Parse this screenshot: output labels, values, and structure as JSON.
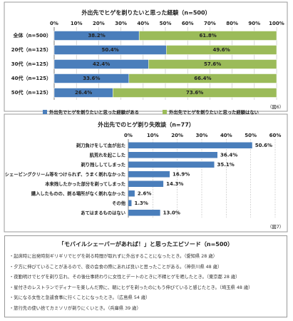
{
  "chart_data": [
    {
      "type": "bar",
      "orientation": "horizontal",
      "stacked": true,
      "grid": true,
      "title": "外出先でヒゲを剃りたいと思った経験（n=500）",
      "categories": [
        "全体（n=500）",
        "20代（n=125）",
        "30代（n=125）",
        "40代（n=125）",
        "50代（n=125）"
      ],
      "series": [
        {
          "name": "外出先でヒゲを剃りたいと思った経験がある",
          "color": "#4a7ebb",
          "values": [
            38.2,
            50.4,
            42.4,
            33.6,
            26.4
          ],
          "value_labels": [
            "38.2%",
            "50.4%",
            "42.4%",
            "33.6%",
            "26.4%"
          ]
        },
        {
          "name": "外出先でヒゲを剃りたいと思った経験はない",
          "color": "#9bbb59",
          "values": [
            61.8,
            49.6,
            57.6,
            66.4,
            73.6
          ],
          "value_labels": [
            "61.8%",
            "49.6%",
            "57.6%",
            "66.4%",
            "73.6%"
          ]
        }
      ],
      "xlim": [
        0,
        100
      ],
      "xticks": [
        {
          "value": 0,
          "label": "0%"
        },
        {
          "value": 10,
          "label": "10%"
        },
        {
          "value": 20,
          "label": "20%"
        },
        {
          "value": 30,
          "label": "30%"
        },
        {
          "value": 40,
          "label": "40%"
        },
        {
          "value": 50,
          "label": "50%"
        },
        {
          "value": 60,
          "label": "60%"
        },
        {
          "value": 70,
          "label": "70%"
        },
        {
          "value": 80,
          "label": "80%"
        },
        {
          "value": 90,
          "label": "90%"
        },
        {
          "value": 100,
          "label": "100%"
        }
      ],
      "note": "（図6）"
    },
    {
      "type": "bar",
      "orientation": "horizontal",
      "stacked": false,
      "grid": true,
      "title": "外出先でのヒゲ剃り失敗談（n=77）",
      "categories": [
        "剃刀負けをして血が出た",
        "肌荒れを起こした",
        "剃り残ししてしまった",
        "シェービングクリーム等をつけられず、うまく剃れなかった",
        "本来残したかった部分を剃ってしまった",
        "購入したものの、剃る場所がなく剃れなかった",
        "その他",
        "あてはまるものはない"
      ],
      "values": [
        50.6,
        36.4,
        35.1,
        16.9,
        14.3,
        2.6,
        1.3,
        13.0
      ],
      "value_labels": [
        "50.6%",
        "36.4%",
        "35.1%",
        "16.9%",
        "14.3%",
        "2.6%",
        "1.3%",
        "13.0%"
      ],
      "color": "#4a7ebb",
      "xlim": [
        0,
        60
      ],
      "xticks": [
        {
          "value": 0,
          "label": "0%"
        },
        {
          "value": 10,
          "label": "10%"
        },
        {
          "value": 20,
          "label": "20%"
        },
        {
          "value": 30,
          "label": "30%"
        },
        {
          "value": 40,
          "label": "40%"
        },
        {
          "value": 50,
          "label": "50%"
        },
        {
          "value": 60,
          "label": "60%"
        }
      ],
      "note": "（図7）"
    }
  ],
  "episodes": {
    "title": "「モバイルシェーバーがあれば！」と思ったエピソード（n=500）",
    "items": [
      "・起床時に出発時刻ギリギリでヒゲを剃る時間が取れずに外出することになったとき。（愛知県 28 歳）",
      "・夕方に伸びていることがあるので、夜の会食の際にあれば良いと思ったことがある。（神奈川県 48 歳）",
      "・夜勤明けでヒゲを剃り忘れ、その後仕事終わりに女性とデートのときに不精ヒゲを晒したとき。（東京都 28 歳）",
      "・星付きのレストランでディナーを楽しんだ際に、朝にヒゲを剃ったのにもう伸びていると感じたとき。（埼玉県 48 歳）",
      "・気になる女性と急遽食事に行くことになったとき。（広島県 54 歳）",
      "・旅行先の使い捨てカミソリが剃りにくいとき。（兵庫県 39 歳）"
    ]
  }
}
